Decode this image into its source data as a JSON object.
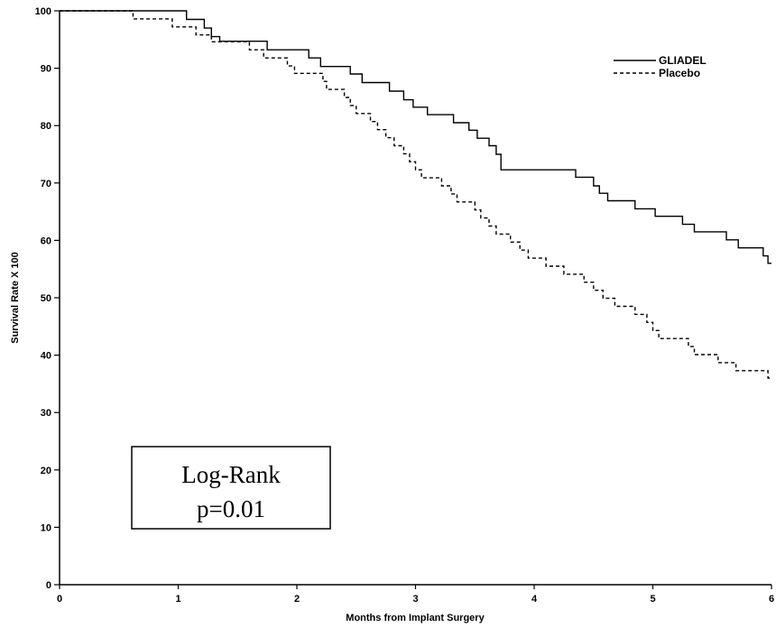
{
  "chart_data": {
    "type": "line",
    "title": "",
    "xlabel": "Months from Implant Surgery",
    "ylabel": "Survival Rate X 100",
    "xlim": [
      0,
      6
    ],
    "ylim": [
      0,
      100
    ],
    "x_ticks": [
      0,
      1,
      2,
      3,
      4,
      5,
      6
    ],
    "y_ticks": [
      0,
      10,
      20,
      30,
      40,
      50,
      60,
      70,
      80,
      90,
      100
    ],
    "grid": false,
    "legend_position": "top-right",
    "step": true,
    "series": [
      {
        "name": "GLIADEL",
        "line_style": "solid",
        "color": "#000000",
        "points": [
          [
            0,
            100
          ],
          [
            1.07,
            100
          ],
          [
            1.07,
            98.5
          ],
          [
            1.22,
            98.5
          ],
          [
            1.22,
            97
          ],
          [
            1.28,
            97
          ],
          [
            1.28,
            95.5
          ],
          [
            1.35,
            95.5
          ],
          [
            1.35,
            94.7
          ],
          [
            1.75,
            94.7
          ],
          [
            1.75,
            93.2
          ],
          [
            2.1,
            93.2
          ],
          [
            2.1,
            91.8
          ],
          [
            2.2,
            91.8
          ],
          [
            2.2,
            90.3
          ],
          [
            2.45,
            90.3
          ],
          [
            2.45,
            89
          ],
          [
            2.55,
            89
          ],
          [
            2.55,
            87.5
          ],
          [
            2.78,
            87.5
          ],
          [
            2.78,
            86
          ],
          [
            2.9,
            86
          ],
          [
            2.9,
            84.5
          ],
          [
            2.98,
            84.5
          ],
          [
            2.98,
            83.2
          ],
          [
            3.1,
            83.2
          ],
          [
            3.1,
            81.9
          ],
          [
            3.32,
            81.9
          ],
          [
            3.32,
            80.5
          ],
          [
            3.45,
            80.5
          ],
          [
            3.45,
            79.2
          ],
          [
            3.52,
            79.2
          ],
          [
            3.52,
            77.8
          ],
          [
            3.62,
            77.8
          ],
          [
            3.62,
            76.5
          ],
          [
            3.68,
            76.5
          ],
          [
            3.68,
            75
          ],
          [
            3.72,
            75
          ],
          [
            3.72,
            72.3
          ],
          [
            4.35,
            72.3
          ],
          [
            4.35,
            71
          ],
          [
            4.5,
            71
          ],
          [
            4.5,
            69.5
          ],
          [
            4.55,
            69.5
          ],
          [
            4.55,
            68.2
          ],
          [
            4.62,
            68.2
          ],
          [
            4.62,
            66.9
          ],
          [
            4.85,
            66.9
          ],
          [
            4.85,
            65.5
          ],
          [
            5.02,
            65.5
          ],
          [
            5.02,
            64.2
          ],
          [
            5.25,
            64.2
          ],
          [
            5.25,
            62.8
          ],
          [
            5.35,
            62.8
          ],
          [
            5.35,
            61.5
          ],
          [
            5.62,
            61.5
          ],
          [
            5.62,
            60.1
          ],
          [
            5.72,
            60.1
          ],
          [
            5.72,
            58.7
          ],
          [
            5.93,
            58.7
          ],
          [
            5.93,
            57.3
          ],
          [
            5.97,
            57.3
          ],
          [
            5.97,
            56
          ],
          [
            6.0,
            56
          ]
        ]
      },
      {
        "name": "Placebo",
        "line_style": "dashed",
        "color": "#000000",
        "points": [
          [
            0,
            100
          ],
          [
            0.62,
            100
          ],
          [
            0.62,
            98.6
          ],
          [
            0.95,
            98.6
          ],
          [
            0.95,
            97.2
          ],
          [
            1.15,
            97.2
          ],
          [
            1.15,
            95.8
          ],
          [
            1.28,
            95.8
          ],
          [
            1.28,
            94.6
          ],
          [
            1.6,
            94.6
          ],
          [
            1.6,
            93.2
          ],
          [
            1.72,
            93.2
          ],
          [
            1.72,
            91.8
          ],
          [
            1.92,
            91.8
          ],
          [
            1.92,
            90.4
          ],
          [
            1.98,
            90.4
          ],
          [
            1.98,
            89.1
          ],
          [
            2.22,
            89.1
          ],
          [
            2.22,
            87.7
          ],
          [
            2.25,
            87.7
          ],
          [
            2.25,
            86.3
          ],
          [
            2.4,
            86.3
          ],
          [
            2.4,
            84.9
          ],
          [
            2.45,
            84.9
          ],
          [
            2.45,
            83.5
          ],
          [
            2.5,
            83.5
          ],
          [
            2.5,
            82.1
          ],
          [
            2.62,
            82.1
          ],
          [
            2.62,
            80.7
          ],
          [
            2.68,
            80.7
          ],
          [
            2.68,
            79.3
          ],
          [
            2.75,
            79.3
          ],
          [
            2.75,
            77.9
          ],
          [
            2.82,
            77.9
          ],
          [
            2.82,
            76.5
          ],
          [
            2.9,
            76.5
          ],
          [
            2.9,
            75.1
          ],
          [
            2.95,
            75.1
          ],
          [
            2.95,
            73.7
          ],
          [
            3.0,
            73.7
          ],
          [
            3.0,
            72.3
          ],
          [
            3.05,
            72.3
          ],
          [
            3.05,
            70.9
          ],
          [
            3.22,
            70.9
          ],
          [
            3.22,
            69.5
          ],
          [
            3.3,
            69.5
          ],
          [
            3.3,
            68.1
          ],
          [
            3.35,
            68.1
          ],
          [
            3.35,
            66.7
          ],
          [
            3.5,
            66.7
          ],
          [
            3.5,
            65.3
          ],
          [
            3.55,
            65.3
          ],
          [
            3.55,
            63.9
          ],
          [
            3.62,
            63.9
          ],
          [
            3.62,
            62.5
          ],
          [
            3.68,
            62.5
          ],
          [
            3.68,
            61.1
          ],
          [
            3.8,
            61.1
          ],
          [
            3.8,
            59.7
          ],
          [
            3.88,
            59.7
          ],
          [
            3.88,
            58.3
          ],
          [
            3.95,
            58.3
          ],
          [
            3.95,
            56.9
          ],
          [
            4.1,
            56.9
          ],
          [
            4.1,
            55.5
          ],
          [
            4.25,
            55.5
          ],
          [
            4.25,
            54.1
          ],
          [
            4.42,
            54.1
          ],
          [
            4.42,
            52.7
          ],
          [
            4.5,
            52.7
          ],
          [
            4.5,
            51.3
          ],
          [
            4.58,
            51.3
          ],
          [
            4.58,
            49.9
          ],
          [
            4.68,
            49.9
          ],
          [
            4.68,
            48.5
          ],
          [
            4.85,
            48.5
          ],
          [
            4.85,
            47.1
          ],
          [
            4.95,
            47.1
          ],
          [
            4.95,
            45.7
          ],
          [
            5.0,
            45.7
          ],
          [
            5.0,
            44.3
          ],
          [
            5.05,
            44.3
          ],
          [
            5.05,
            42.9
          ],
          [
            5.3,
            42.9
          ],
          [
            5.3,
            41.5
          ],
          [
            5.35,
            41.5
          ],
          [
            5.35,
            40.1
          ],
          [
            5.55,
            40.1
          ],
          [
            5.55,
            38.7
          ],
          [
            5.7,
            38.7
          ],
          [
            5.7,
            37.3
          ],
          [
            5.97,
            37.3
          ],
          [
            5.97,
            36.0
          ],
          [
            6.0,
            36.0
          ]
        ]
      }
    ],
    "annotations": [
      {
        "lines": [
          "Log-Rank",
          "p=0.01"
        ],
        "position": "lower-left"
      }
    ]
  }
}
